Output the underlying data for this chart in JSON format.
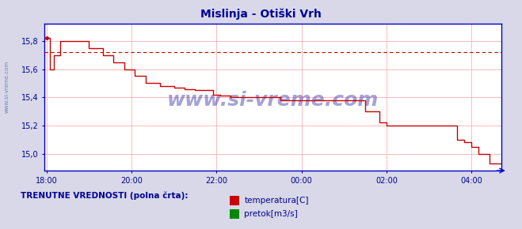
{
  "title": "Mislinja - Otiški Vrh",
  "title_color": "#000099",
  "title_fontsize": 10,
  "bg_color": "#d8d8e8",
  "plot_bg_color": "#ffffff",
  "line_color": "#cc0000",
  "avg_line_color": "#cc0000",
  "avg_line_value": 15.72,
  "ylim": [
    14.88,
    15.92
  ],
  "yticks": [
    15.0,
    15.2,
    15.4,
    15.6,
    15.8
  ],
  "ytick_labels": [
    "15,0",
    "15,2",
    "15,4",
    "15,6",
    "15,8"
  ],
  "xtick_positions": [
    0,
    2,
    4,
    6,
    8,
    10
  ],
  "xtick_labels": [
    "18:00",
    "20:00",
    "22:00",
    "00:00",
    "02:00",
    "04:00"
  ],
  "grid_color": "#ffb0b0",
  "watermark": "www.si-vreme.com",
  "watermark_color": "#3333aa",
  "watermark_alpha": 0.45,
  "legend_text1": "temperatura[C]",
  "legend_text2": "pretok[m3/s]",
  "legend_color1": "#cc0000",
  "legend_color2": "#008800",
  "label_color": "#000099",
  "axis_color": "#0000cc",
  "total_hours": 10.7,
  "temp_times": [
    0.0,
    0.08,
    0.08,
    0.17,
    0.17,
    0.33,
    0.33,
    0.5,
    0.5,
    1.0,
    1.0,
    1.33,
    1.33,
    1.58,
    1.58,
    1.83,
    1.83,
    2.08,
    2.08,
    2.33,
    2.33,
    2.67,
    2.67,
    3.0,
    3.0,
    3.25,
    3.25,
    3.5,
    3.5,
    3.92,
    3.92,
    4.08,
    4.08,
    4.33,
    4.33,
    4.67,
    4.67,
    5.0,
    5.0,
    5.5,
    5.5,
    6.0,
    6.0,
    7.5,
    7.5,
    7.83,
    7.83,
    8.0,
    8.0,
    8.17,
    8.17,
    9.67,
    9.67,
    9.83,
    9.83,
    10.0,
    10.0,
    10.17,
    10.17,
    10.42,
    10.42,
    10.7
  ],
  "temp_vals": [
    15.82,
    15.82,
    15.6,
    15.6,
    15.7,
    15.7,
    15.8,
    15.8,
    15.8,
    15.8,
    15.75,
    15.75,
    15.7,
    15.7,
    15.65,
    15.65,
    15.6,
    15.6,
    15.55,
    15.55,
    15.5,
    15.5,
    15.48,
    15.48,
    15.47,
    15.47,
    15.46,
    15.46,
    15.45,
    15.45,
    15.42,
    15.42,
    15.41,
    15.41,
    15.4,
    15.4,
    15.4,
    15.4,
    15.4,
    15.4,
    15.38,
    15.38,
    15.38,
    15.38,
    15.3,
    15.3,
    15.22,
    15.22,
    15.2,
    15.2,
    15.2,
    15.2,
    15.1,
    15.1,
    15.08,
    15.08,
    15.05,
    15.05,
    15.0,
    15.0,
    14.93,
    14.93
  ]
}
